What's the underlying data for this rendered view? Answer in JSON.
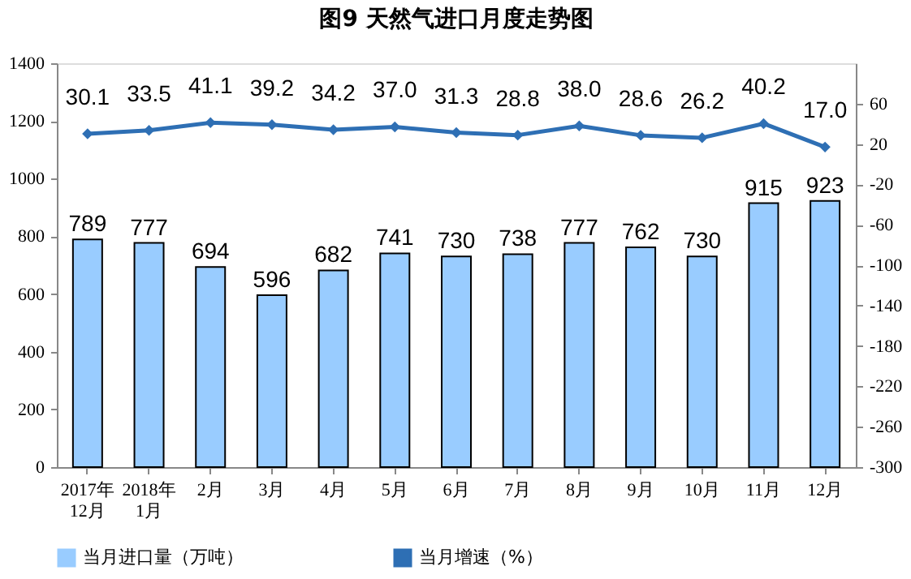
{
  "chart_data": {
    "type": "bar",
    "title": "图9  天然气进口月度走势图",
    "categories": [
      "2017年\n12月",
      "2018年\n1月",
      "2月",
      "3月",
      "4月",
      "5月",
      "6月",
      "7月",
      "8月",
      "9月",
      "10月",
      "11月",
      "12月"
    ],
    "series": [
      {
        "name": "当月进口量（万吨）",
        "color": "#99ccff",
        "values": [
          789,
          777,
          694,
          596,
          682,
          741,
          730,
          738,
          777,
          762,
          730,
          915,
          923
        ]
      },
      {
        "name": "当月增速（%）",
        "type": "line",
        "axis": "y2",
        "color": "#2e6fb4",
        "marker": "diamond",
        "values": [
          30.1,
          33.5,
          41.1,
          39.2,
          34.2,
          37.0,
          31.3,
          28.8,
          38.0,
          28.6,
          26.2,
          40.2,
          17.0
        ],
        "value_labels": [
          "30.1",
          "33.5",
          "41.1",
          "39.2",
          "34.2",
          "37.0",
          "31.3",
          "28.8",
          "38.0",
          "28.6",
          "26.2",
          "40.2",
          "17.0"
        ]
      }
    ],
    "ylim": [
      0,
      1400
    ],
    "yticks": [
      0,
      200,
      400,
      600,
      800,
      1000,
      1200,
      1400
    ],
    "y2lim": [
      -300,
      100
    ],
    "y2ticks": [
      -300,
      -260,
      -220,
      -180,
      -140,
      -100,
      -60,
      -20,
      20,
      60
    ],
    "data_labels": true,
    "grid": false,
    "legend": "bottom"
  }
}
